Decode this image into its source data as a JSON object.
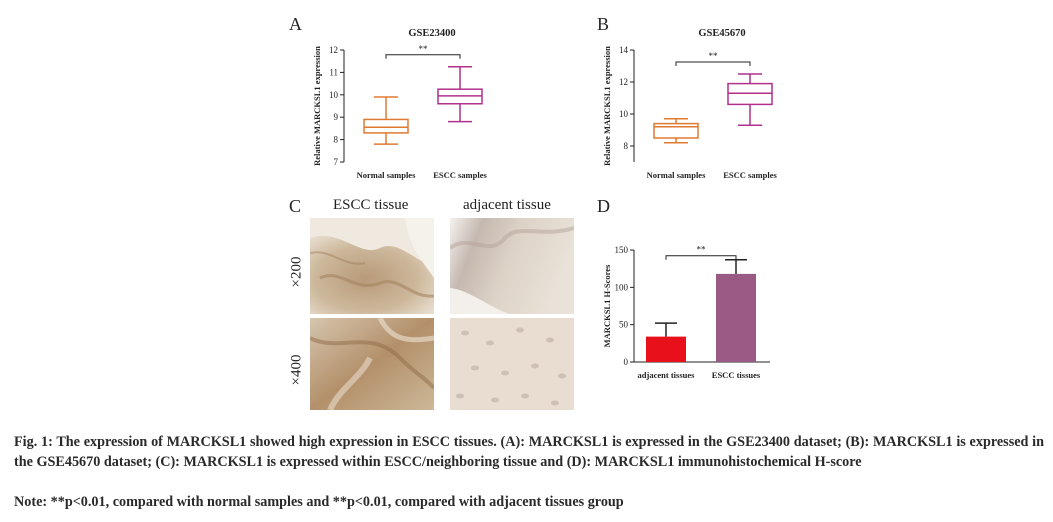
{
  "panels": {
    "A": {
      "letter": "A"
    },
    "B": {
      "letter": "B"
    },
    "C": {
      "letter": "C",
      "col_labels": [
        "ESCC tissue",
        "adjacent tissue"
      ],
      "row_labels": [
        "×200",
        "×400"
      ]
    },
    "D": {
      "letter": "D"
    }
  },
  "chart_data": [
    {
      "type": "box",
      "title": "GSE23400",
      "ylabel": "Relative MARCKSL1 expression",
      "ylim": [
        7,
        12
      ],
      "yticks": [
        "7",
        "8",
        "9",
        "10",
        "11",
        "12"
      ],
      "categories": [
        "Normal samples",
        "ESCC samples"
      ],
      "boxes": [
        {
          "min": 7.8,
          "q1": 8.3,
          "median": 8.55,
          "q3": 8.9,
          "max": 9.9,
          "color": "#e07a30"
        },
        {
          "min": 8.8,
          "q1": 9.6,
          "median": 9.95,
          "q3": 10.25,
          "max": 11.25,
          "color": "#b0308c"
        }
      ],
      "significance": "**"
    },
    {
      "type": "box",
      "title": "GSE45670",
      "ylabel": "Relative MARCKSL1 expression",
      "ylim": [
        7,
        14
      ],
      "yticks": [
        "8",
        "10",
        "12",
        "14"
      ],
      "categories": [
        "Normal samples",
        "ESCC samples"
      ],
      "boxes": [
        {
          "min": 8.2,
          "q1": 8.5,
          "median": 9.2,
          "q3": 9.4,
          "max": 9.7,
          "color": "#e07a30"
        },
        {
          "min": 9.3,
          "q1": 10.6,
          "median": 11.3,
          "q3": 11.9,
          "max": 12.5,
          "color": "#b0308c"
        }
      ],
      "significance": "**"
    },
    {
      "type": "bar",
      "ylabel": "MARCKSL1 H-Scores",
      "ylim": [
        0,
        150
      ],
      "yticks": [
        "0",
        "50",
        "100",
        "150"
      ],
      "categories": [
        "adjacent tissues",
        "ESCC tissues"
      ],
      "values": [
        34,
        118
      ],
      "errors": [
        18,
        19
      ],
      "colors": [
        "#e8101a",
        "#9a5a85"
      ],
      "significance": "**"
    }
  ],
  "caption": {
    "main": "Fig. 1: The expression of MARCKSL1 showed high expression in ESCC tissues. (A): MARCKSL1 is expressed in the GSE23400 dataset; (B): MARCKSL1 is expressed in the GSE45670 dataset; (C): MARCKSL1 is expressed within ESCC/neighboring tissue and (D): MARCKSL1 immunohistochemical H-score",
    "note": "Note: **p<0.01, compared with normal samples and **p<0.01, compared with adjacent tissues group"
  }
}
